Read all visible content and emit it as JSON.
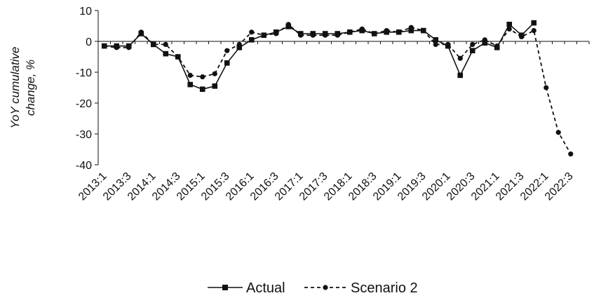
{
  "chart_data": {
    "type": "line",
    "title": "",
    "xlabel": "",
    "ylabel_lines": [
      "YoY cumulative",
      "change, %"
    ],
    "ylim": [
      -40,
      10
    ],
    "yticks": [
      10,
      0,
      -10,
      -20,
      -30,
      -40
    ],
    "grid": false,
    "legend_position": "bottom-center",
    "x": [
      "2013:1",
      "2013:2",
      "2013:3",
      "2013:4",
      "2014:1",
      "2014:2",
      "2014:3",
      "2014:4",
      "2015:1",
      "2015:2",
      "2015:3",
      "2015:4",
      "2016:1",
      "2016:2",
      "2016:3",
      "2016:4",
      "2017:1",
      "2017:2",
      "2017:3",
      "2017:4",
      "2018:1",
      "2018:2",
      "2018:3",
      "2018:4",
      "2019:1",
      "2019:2",
      "2019:3",
      "2019:4",
      "2020:1",
      "2020:2",
      "2020:3",
      "2020:4",
      "2021:1",
      "2021:2",
      "2021:3",
      "2021:4",
      "2022:1",
      "2022:2",
      "2022:3",
      "2022:4"
    ],
    "x_tick_labels": [
      "2013:1",
      "2013:3",
      "2014:1",
      "2014:3",
      "2015:1",
      "2015:3",
      "2016:1",
      "2016:3",
      "2017:1",
      "2017:3",
      "2018:1",
      "2018:3",
      "2019:1",
      "2019:3",
      "2020:1",
      "2020:3",
      "2021:1",
      "2021:3",
      "2022:1",
      "2022:3"
    ],
    "series": [
      {
        "name": "Actual",
        "style": "solid",
        "marker": "square",
        "color": "#111111",
        "values": [
          -1.5,
          -1.5,
          -1.5,
          2.5,
          -1,
          -4,
          -5,
          -14,
          -15.5,
          -14.5,
          -7,
          -2,
          0.5,
          2,
          3,
          4.8,
          2.5,
          2.5,
          2.5,
          2.5,
          3,
          3.5,
          2.5,
          3,
          3,
          3.5,
          3.5,
          0.5,
          -1.5,
          -11,
          -3,
          -0.5,
          -2,
          5.5,
          2,
          6,
          null,
          null,
          null,
          null
        ]
      },
      {
        "name": "Scenario 2",
        "style": "dashed",
        "marker": "dot",
        "color": "#111111",
        "values": [
          -1.5,
          -2,
          -2,
          3,
          -1,
          -1,
          -5,
          -11,
          -11.5,
          -10.5,
          -3,
          -1,
          3,
          2,
          2.5,
          5.5,
          2,
          2,
          2,
          2,
          3,
          4,
          2.5,
          3.5,
          3,
          4.5,
          3.5,
          -1,
          -1,
          -5.5,
          -1,
          0.5,
          -1.5,
          4,
          1.5,
          3.5,
          -15,
          -29.5,
          -36.5,
          null
        ]
      }
    ]
  }
}
